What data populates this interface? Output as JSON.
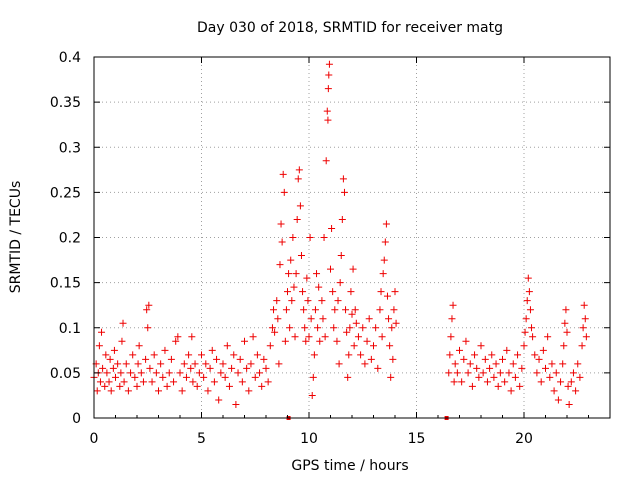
{
  "chart_data": {
    "type": "scatter",
    "title": "Day 030 of 2018, SRMTID for receiver matg",
    "xlabel": "GPS time / hours",
    "ylabel": "SRMTID / TECUs",
    "xlim": [
      0,
      24
    ],
    "ylim": [
      0,
      0.4
    ],
    "x_ticks": [
      0,
      5,
      10,
      15,
      20
    ],
    "x_tick_labels": [
      "0",
      "5",
      "10",
      "15",
      "20"
    ],
    "y_ticks": [
      0,
      0.05,
      0.1,
      0.15,
      0.2,
      0.25,
      0.3,
      0.35,
      0.4
    ],
    "y_tick_labels": [
      "0",
      "0.05",
      "0.1",
      "0.15",
      "0.2",
      "0.25",
      "0.3",
      "0.35",
      "0.4"
    ],
    "grid": true,
    "marker": "+",
    "colors": {
      "series": "#ee0000",
      "grid": "#a0a0a0",
      "axis": "#000000"
    },
    "series": [
      {
        "name": "SRMTID",
        "points": [
          [
            0.0,
            0.045
          ],
          [
            0.1,
            0.06
          ],
          [
            0.15,
            0.03
          ],
          [
            0.2,
            0.05
          ],
          [
            0.25,
            0.08
          ],
          [
            0.3,
            0.04
          ],
          [
            0.35,
            0.095
          ],
          [
            0.4,
            0.055
          ],
          [
            0.5,
            0.035
          ],
          [
            0.55,
            0.07
          ],
          [
            0.6,
            0.05
          ],
          [
            0.7,
            0.04
          ],
          [
            0.75,
            0.065
          ],
          [
            0.8,
            0.03
          ],
          [
            0.9,
            0.055
          ],
          [
            0.95,
            0.075
          ],
          [
            1.0,
            0.045
          ],
          [
            1.1,
            0.06
          ],
          [
            1.2,
            0.035
          ],
          [
            1.25,
            0.05
          ],
          [
            1.3,
            0.085
          ],
          [
            1.35,
            0.105
          ],
          [
            1.4,
            0.04
          ],
          [
            1.5,
            0.06
          ],
          [
            1.6,
            0.03
          ],
          [
            1.7,
            0.05
          ],
          [
            1.8,
            0.07
          ],
          [
            1.9,
            0.045
          ],
          [
            2.0,
            0.035
          ],
          [
            2.05,
            0.06
          ],
          [
            2.1,
            0.08
          ],
          [
            2.2,
            0.05
          ],
          [
            2.3,
            0.04
          ],
          [
            2.4,
            0.065
          ],
          [
            2.45,
            0.12
          ],
          [
            2.5,
            0.1
          ],
          [
            2.55,
            0.125
          ],
          [
            2.6,
            0.055
          ],
          [
            2.7,
            0.04
          ],
          [
            2.8,
            0.07
          ],
          [
            2.9,
            0.05
          ],
          [
            3.0,
            0.03
          ],
          [
            3.1,
            0.06
          ],
          [
            3.2,
            0.045
          ],
          [
            3.3,
            0.075
          ],
          [
            3.4,
            0.035
          ],
          [
            3.5,
            0.05
          ],
          [
            3.6,
            0.065
          ],
          [
            3.7,
            0.04
          ],
          [
            3.8,
            0.085
          ],
          [
            3.9,
            0.09
          ],
          [
            4.0,
            0.05
          ],
          [
            4.1,
            0.03
          ],
          [
            4.2,
            0.06
          ],
          [
            4.3,
            0.045
          ],
          [
            4.4,
            0.07
          ],
          [
            4.5,
            0.055
          ],
          [
            4.55,
            0.09
          ],
          [
            4.6,
            0.04
          ],
          [
            4.7,
            0.06
          ],
          [
            4.8,
            0.035
          ],
          [
            4.9,
            0.05
          ],
          [
            5.0,
            0.07
          ],
          [
            5.1,
            0.045
          ],
          [
            5.2,
            0.06
          ],
          [
            5.3,
            0.03
          ],
          [
            5.4,
            0.055
          ],
          [
            5.5,
            0.075
          ],
          [
            5.6,
            0.04
          ],
          [
            5.7,
            0.065
          ],
          [
            5.8,
            0.02
          ],
          [
            5.9,
            0.05
          ],
          [
            6.0,
            0.06
          ],
          [
            6.1,
            0.045
          ],
          [
            6.2,
            0.08
          ],
          [
            6.3,
            0.035
          ],
          [
            6.4,
            0.055
          ],
          [
            6.5,
            0.07
          ],
          [
            6.6,
            0.015
          ],
          [
            6.7,
            0.05
          ],
          [
            6.8,
            0.065
          ],
          [
            6.9,
            0.04
          ],
          [
            7.0,
            0.085
          ],
          [
            7.1,
            0.055
          ],
          [
            7.2,
            0.03
          ],
          [
            7.3,
            0.06
          ],
          [
            7.4,
            0.09
          ],
          [
            7.5,
            0.045
          ],
          [
            7.6,
            0.07
          ],
          [
            7.7,
            0.05
          ],
          [
            7.8,
            0.035
          ],
          [
            7.9,
            0.065
          ],
          [
            8.0,
            0.055
          ],
          [
            8.1,
            0.04
          ],
          [
            8.2,
            0.08
          ],
          [
            8.3,
            0.1
          ],
          [
            8.35,
            0.12
          ],
          [
            8.4,
            0.095
          ],
          [
            8.5,
            0.13
          ],
          [
            8.55,
            0.11
          ],
          [
            8.6,
            0.06
          ],
          [
            8.65,
            0.17
          ],
          [
            8.7,
            0.215
          ],
          [
            8.75,
            0.195
          ],
          [
            8.8,
            0.27
          ],
          [
            8.85,
            0.25
          ],
          [
            8.9,
            0.085
          ],
          [
            8.95,
            0.12
          ],
          [
            9.0,
            0.14
          ],
          [
            9.05,
            0.16
          ],
          [
            9.1,
            0.1
          ],
          [
            9.15,
            0.175
          ],
          [
            9.2,
            0.13
          ],
          [
            9.25,
            0.2
          ],
          [
            9.3,
            0.145
          ],
          [
            9.35,
            0.09
          ],
          [
            9.4,
            0.16
          ],
          [
            9.45,
            0.22
          ],
          [
            9.5,
            0.265
          ],
          [
            9.55,
            0.275
          ],
          [
            9.6,
            0.235
          ],
          [
            9.65,
            0.18
          ],
          [
            9.7,
            0.14
          ],
          [
            9.75,
            0.12
          ],
          [
            9.8,
            0.1
          ],
          [
            9.85,
            0.085
          ],
          [
            9.9,
            0.155
          ],
          [
            9.95,
            0.13
          ],
          [
            10.0,
            0.09
          ],
          [
            10.05,
            0.2
          ],
          [
            10.1,
            0.11
          ],
          [
            10.15,
            0.025
          ],
          [
            10.2,
            0.045
          ],
          [
            10.25,
            0.07
          ],
          [
            10.3,
            0.12
          ],
          [
            10.35,
            0.16
          ],
          [
            10.4,
            0.1
          ],
          [
            10.45,
            0.145
          ],
          [
            10.5,
            0.085
          ],
          [
            10.6,
            0.13
          ],
          [
            10.65,
            0.11
          ],
          [
            10.7,
            0.2
          ],
          [
            10.75,
            0.09
          ],
          [
            10.8,
            0.285
          ],
          [
            10.85,
            0.34
          ],
          [
            10.88,
            0.33
          ],
          [
            10.9,
            0.365
          ],
          [
            10.92,
            0.38
          ],
          [
            10.95,
            0.392
          ],
          [
            11.0,
            0.165
          ],
          [
            11.05,
            0.21
          ],
          [
            11.1,
            0.14
          ],
          [
            11.15,
            0.1
          ],
          [
            11.2,
            0.12
          ],
          [
            11.3,
            0.085
          ],
          [
            11.35,
            0.13
          ],
          [
            11.4,
            0.06
          ],
          [
            11.45,
            0.15
          ],
          [
            11.5,
            0.18
          ],
          [
            11.55,
            0.22
          ],
          [
            11.6,
            0.265
          ],
          [
            11.65,
            0.25
          ],
          [
            11.7,
            0.12
          ],
          [
            11.75,
            0.095
          ],
          [
            11.8,
            0.045
          ],
          [
            11.85,
            0.07
          ],
          [
            11.9,
            0.1
          ],
          [
            11.95,
            0.14
          ],
          [
            12.0,
            0.115
          ],
          [
            12.05,
            0.165
          ],
          [
            12.1,
            0.08
          ],
          [
            12.15,
            0.12
          ],
          [
            12.2,
            0.105
          ],
          [
            12.3,
            0.09
          ],
          [
            12.4,
            0.07
          ],
          [
            12.5,
            0.1
          ],
          [
            12.6,
            0.06
          ],
          [
            12.7,
            0.085
          ],
          [
            12.8,
            0.11
          ],
          [
            12.9,
            0.065
          ],
          [
            13.0,
            0.08
          ],
          [
            13.1,
            0.1
          ],
          [
            13.2,
            0.055
          ],
          [
            13.3,
            0.12
          ],
          [
            13.35,
            0.14
          ],
          [
            13.4,
            0.09
          ],
          [
            13.45,
            0.16
          ],
          [
            13.5,
            0.175
          ],
          [
            13.55,
            0.195
          ],
          [
            13.6,
            0.215
          ],
          [
            13.65,
            0.135
          ],
          [
            13.7,
            0.11
          ],
          [
            13.75,
            0.08
          ],
          [
            13.8,
            0.045
          ],
          [
            13.85,
            0.1
          ],
          [
            13.9,
            0.065
          ],
          [
            13.95,
            0.12
          ],
          [
            14.0,
            0.14
          ],
          [
            14.05,
            0.105
          ],
          [
            16.5,
            0.05
          ],
          [
            16.55,
            0.07
          ],
          [
            16.6,
            0.09
          ],
          [
            16.65,
            0.11
          ],
          [
            16.7,
            0.125
          ],
          [
            16.75,
            0.04
          ],
          [
            16.8,
            0.06
          ],
          [
            16.9,
            0.05
          ],
          [
            17.0,
            0.075
          ],
          [
            17.1,
            0.04
          ],
          [
            17.2,
            0.065
          ],
          [
            17.3,
            0.085
          ],
          [
            17.4,
            0.05
          ],
          [
            17.5,
            0.06
          ],
          [
            17.6,
            0.035
          ],
          [
            17.7,
            0.07
          ],
          [
            17.8,
            0.055
          ],
          [
            17.9,
            0.045
          ],
          [
            18.0,
            0.08
          ],
          [
            18.1,
            0.05
          ],
          [
            18.2,
            0.065
          ],
          [
            18.3,
            0.04
          ],
          [
            18.4,
            0.055
          ],
          [
            18.5,
            0.07
          ],
          [
            18.6,
            0.045
          ],
          [
            18.7,
            0.06
          ],
          [
            18.8,
            0.035
          ],
          [
            18.9,
            0.05
          ],
          [
            19.0,
            0.065
          ],
          [
            19.1,
            0.04
          ],
          [
            19.2,
            0.075
          ],
          [
            19.3,
            0.05
          ],
          [
            19.4,
            0.03
          ],
          [
            19.5,
            0.06
          ],
          [
            19.6,
            0.045
          ],
          [
            19.7,
            0.07
          ],
          [
            19.8,
            0.035
          ],
          [
            19.9,
            0.055
          ],
          [
            20.0,
            0.08
          ],
          [
            20.05,
            0.095
          ],
          [
            20.1,
            0.11
          ],
          [
            20.15,
            0.13
          ],
          [
            20.2,
            0.155
          ],
          [
            20.25,
            0.14
          ],
          [
            20.3,
            0.12
          ],
          [
            20.35,
            0.1
          ],
          [
            20.4,
            0.09
          ],
          [
            20.5,
            0.07
          ],
          [
            20.6,
            0.05
          ],
          [
            20.7,
            0.065
          ],
          [
            20.8,
            0.04
          ],
          [
            20.9,
            0.075
          ],
          [
            21.0,
            0.055
          ],
          [
            21.1,
            0.09
          ],
          [
            21.2,
            0.045
          ],
          [
            21.3,
            0.06
          ],
          [
            21.4,
            0.03
          ],
          [
            21.5,
            0.05
          ],
          [
            21.6,
            0.02
          ],
          [
            21.7,
            0.04
          ],
          [
            21.8,
            0.06
          ],
          [
            21.85,
            0.08
          ],
          [
            21.9,
            0.105
          ],
          [
            21.95,
            0.12
          ],
          [
            22.0,
            0.095
          ],
          [
            22.05,
            0.035
          ],
          [
            22.1,
            0.015
          ],
          [
            22.2,
            0.04
          ],
          [
            22.3,
            0.05
          ],
          [
            22.4,
            0.03
          ],
          [
            22.5,
            0.06
          ],
          [
            22.6,
            0.045
          ],
          [
            22.7,
            0.08
          ],
          [
            22.75,
            0.1
          ],
          [
            22.8,
            0.125
          ],
          [
            22.85,
            0.11
          ],
          [
            22.9,
            0.09
          ]
        ]
      }
    ]
  }
}
